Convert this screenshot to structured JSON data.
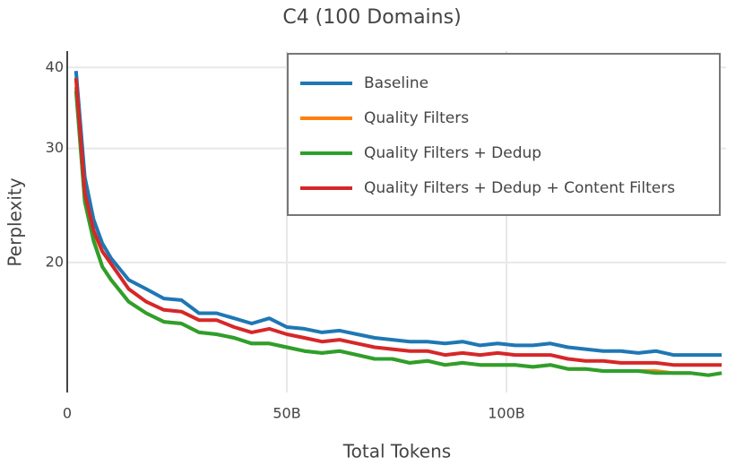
{
  "chart_data": {
    "type": "line",
    "title": "C4 (100 Domains)",
    "x_label": "Total Tokens",
    "y_label": "Perplexity",
    "log_y": true,
    "grid": true,
    "legend_position": "top-right",
    "xlim": [
      0,
      150
    ],
    "xticks": [
      0,
      {
        "value": 50,
        "label": "50B"
      },
      {
        "value": 100,
        "label": "100B"
      }
    ],
    "ylim": [
      12.6,
      42.4
    ],
    "yticks": [
      20,
      30,
      40
    ],
    "x": [
      2,
      4,
      6,
      8,
      10,
      14,
      18,
      22,
      26,
      30,
      34,
      38,
      42,
      46,
      50,
      54,
      58,
      62,
      66,
      70,
      74,
      78,
      82,
      86,
      90,
      94,
      98,
      102,
      106,
      110,
      114,
      118,
      122,
      126,
      130,
      134,
      138,
      142,
      146,
      149
    ],
    "series": [
      {
        "name": "Baseline",
        "color": "#1f77b4",
        "values": [
          39.5,
          27.1,
          23.3,
          21.4,
          20.3,
          18.8,
          18.2,
          17.6,
          17.5,
          16.7,
          16.7,
          16.4,
          16.1,
          16.4,
          15.9,
          15.8,
          15.6,
          15.7,
          15.5,
          15.3,
          15.2,
          15.1,
          15.1,
          15.0,
          15.1,
          14.9,
          15.0,
          14.9,
          14.9,
          15.0,
          14.8,
          14.7,
          14.6,
          14.6,
          14.5,
          14.6,
          14.4,
          14.4,
          14.4,
          14.4
        ]
      },
      {
        "name": "Quality Filters",
        "color": "#ff7f0e",
        "values": [
          37.3,
          24.9,
          21.7,
          19.7,
          18.8,
          17.4,
          16.7,
          16.2,
          16.1,
          15.6,
          15.5,
          15.3,
          15.0,
          15.0,
          14.8,
          14.6,
          14.5,
          14.6,
          14.4,
          14.2,
          14.2,
          14.0,
          14.1,
          13.9,
          14.0,
          13.9,
          13.9,
          13.9,
          13.8,
          13.9,
          13.7,
          13.7,
          13.6,
          13.6,
          13.6,
          13.6,
          13.5,
          13.5,
          13.4,
          13.5
        ]
      },
      {
        "name": "Quality Filters + Dedup",
        "color": "#2ca02c",
        "values": [
          36.8,
          24.8,
          21.6,
          19.7,
          18.8,
          17.4,
          16.7,
          16.2,
          16.1,
          15.6,
          15.5,
          15.3,
          15.0,
          15.0,
          14.8,
          14.6,
          14.5,
          14.6,
          14.4,
          14.2,
          14.2,
          14.0,
          14.1,
          13.9,
          14.0,
          13.9,
          13.9,
          13.9,
          13.8,
          13.9,
          13.7,
          13.7,
          13.6,
          13.6,
          13.6,
          13.5,
          13.5,
          13.5,
          13.4,
          13.5
        ]
      },
      {
        "name": "Quality Filters + Dedup + Content Filters",
        "color": "#d62728",
        "values": [
          38.5,
          25.6,
          22.4,
          20.8,
          19.9,
          18.2,
          17.4,
          16.9,
          16.8,
          16.3,
          16.3,
          15.9,
          15.6,
          15.8,
          15.5,
          15.3,
          15.1,
          15.2,
          15.0,
          14.8,
          14.7,
          14.6,
          14.6,
          14.4,
          14.5,
          14.4,
          14.5,
          14.4,
          14.4,
          14.4,
          14.2,
          14.1,
          14.1,
          14.0,
          14.0,
          14.0,
          13.9,
          13.9,
          13.9,
          13.9
        ]
      }
    ]
  }
}
